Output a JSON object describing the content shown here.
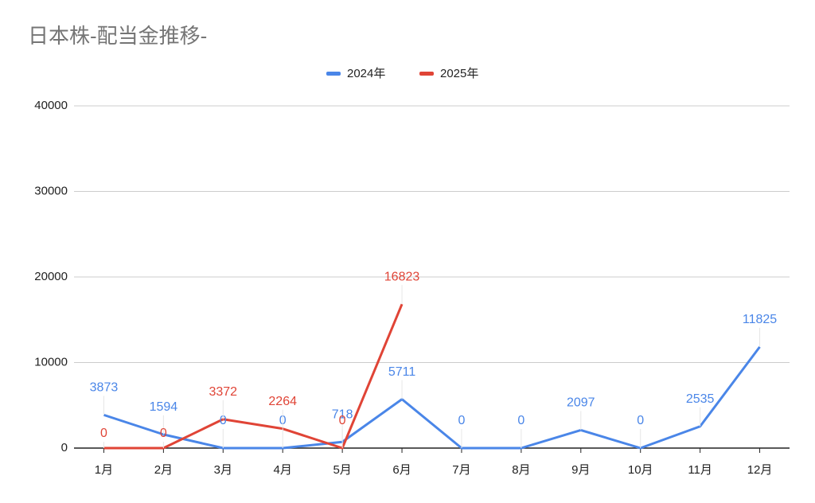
{
  "chart_data": {
    "type": "line",
    "title": "日本株-配当金推移-",
    "categories": [
      "1月",
      "2月",
      "3月",
      "4月",
      "5月",
      "6月",
      "7月",
      "8月",
      "9月",
      "10月",
      "11月",
      "12月"
    ],
    "series": [
      {
        "name": "2024年",
        "color": "#4a86e8",
        "values": [
          3873,
          1594,
          0,
          0,
          718,
          5711,
          0,
          0,
          2097,
          0,
          2535,
          11825
        ]
      },
      {
        "name": "2025年",
        "color": "#e04436",
        "values": [
          0,
          0,
          3372,
          2264,
          0,
          16823,
          null,
          null,
          null,
          null,
          null,
          null
        ]
      }
    ],
    "ylim": [
      0,
      40000
    ],
    "yticks": [
      0,
      10000,
      20000,
      30000,
      40000
    ],
    "grid": true,
    "legend": "top"
  }
}
